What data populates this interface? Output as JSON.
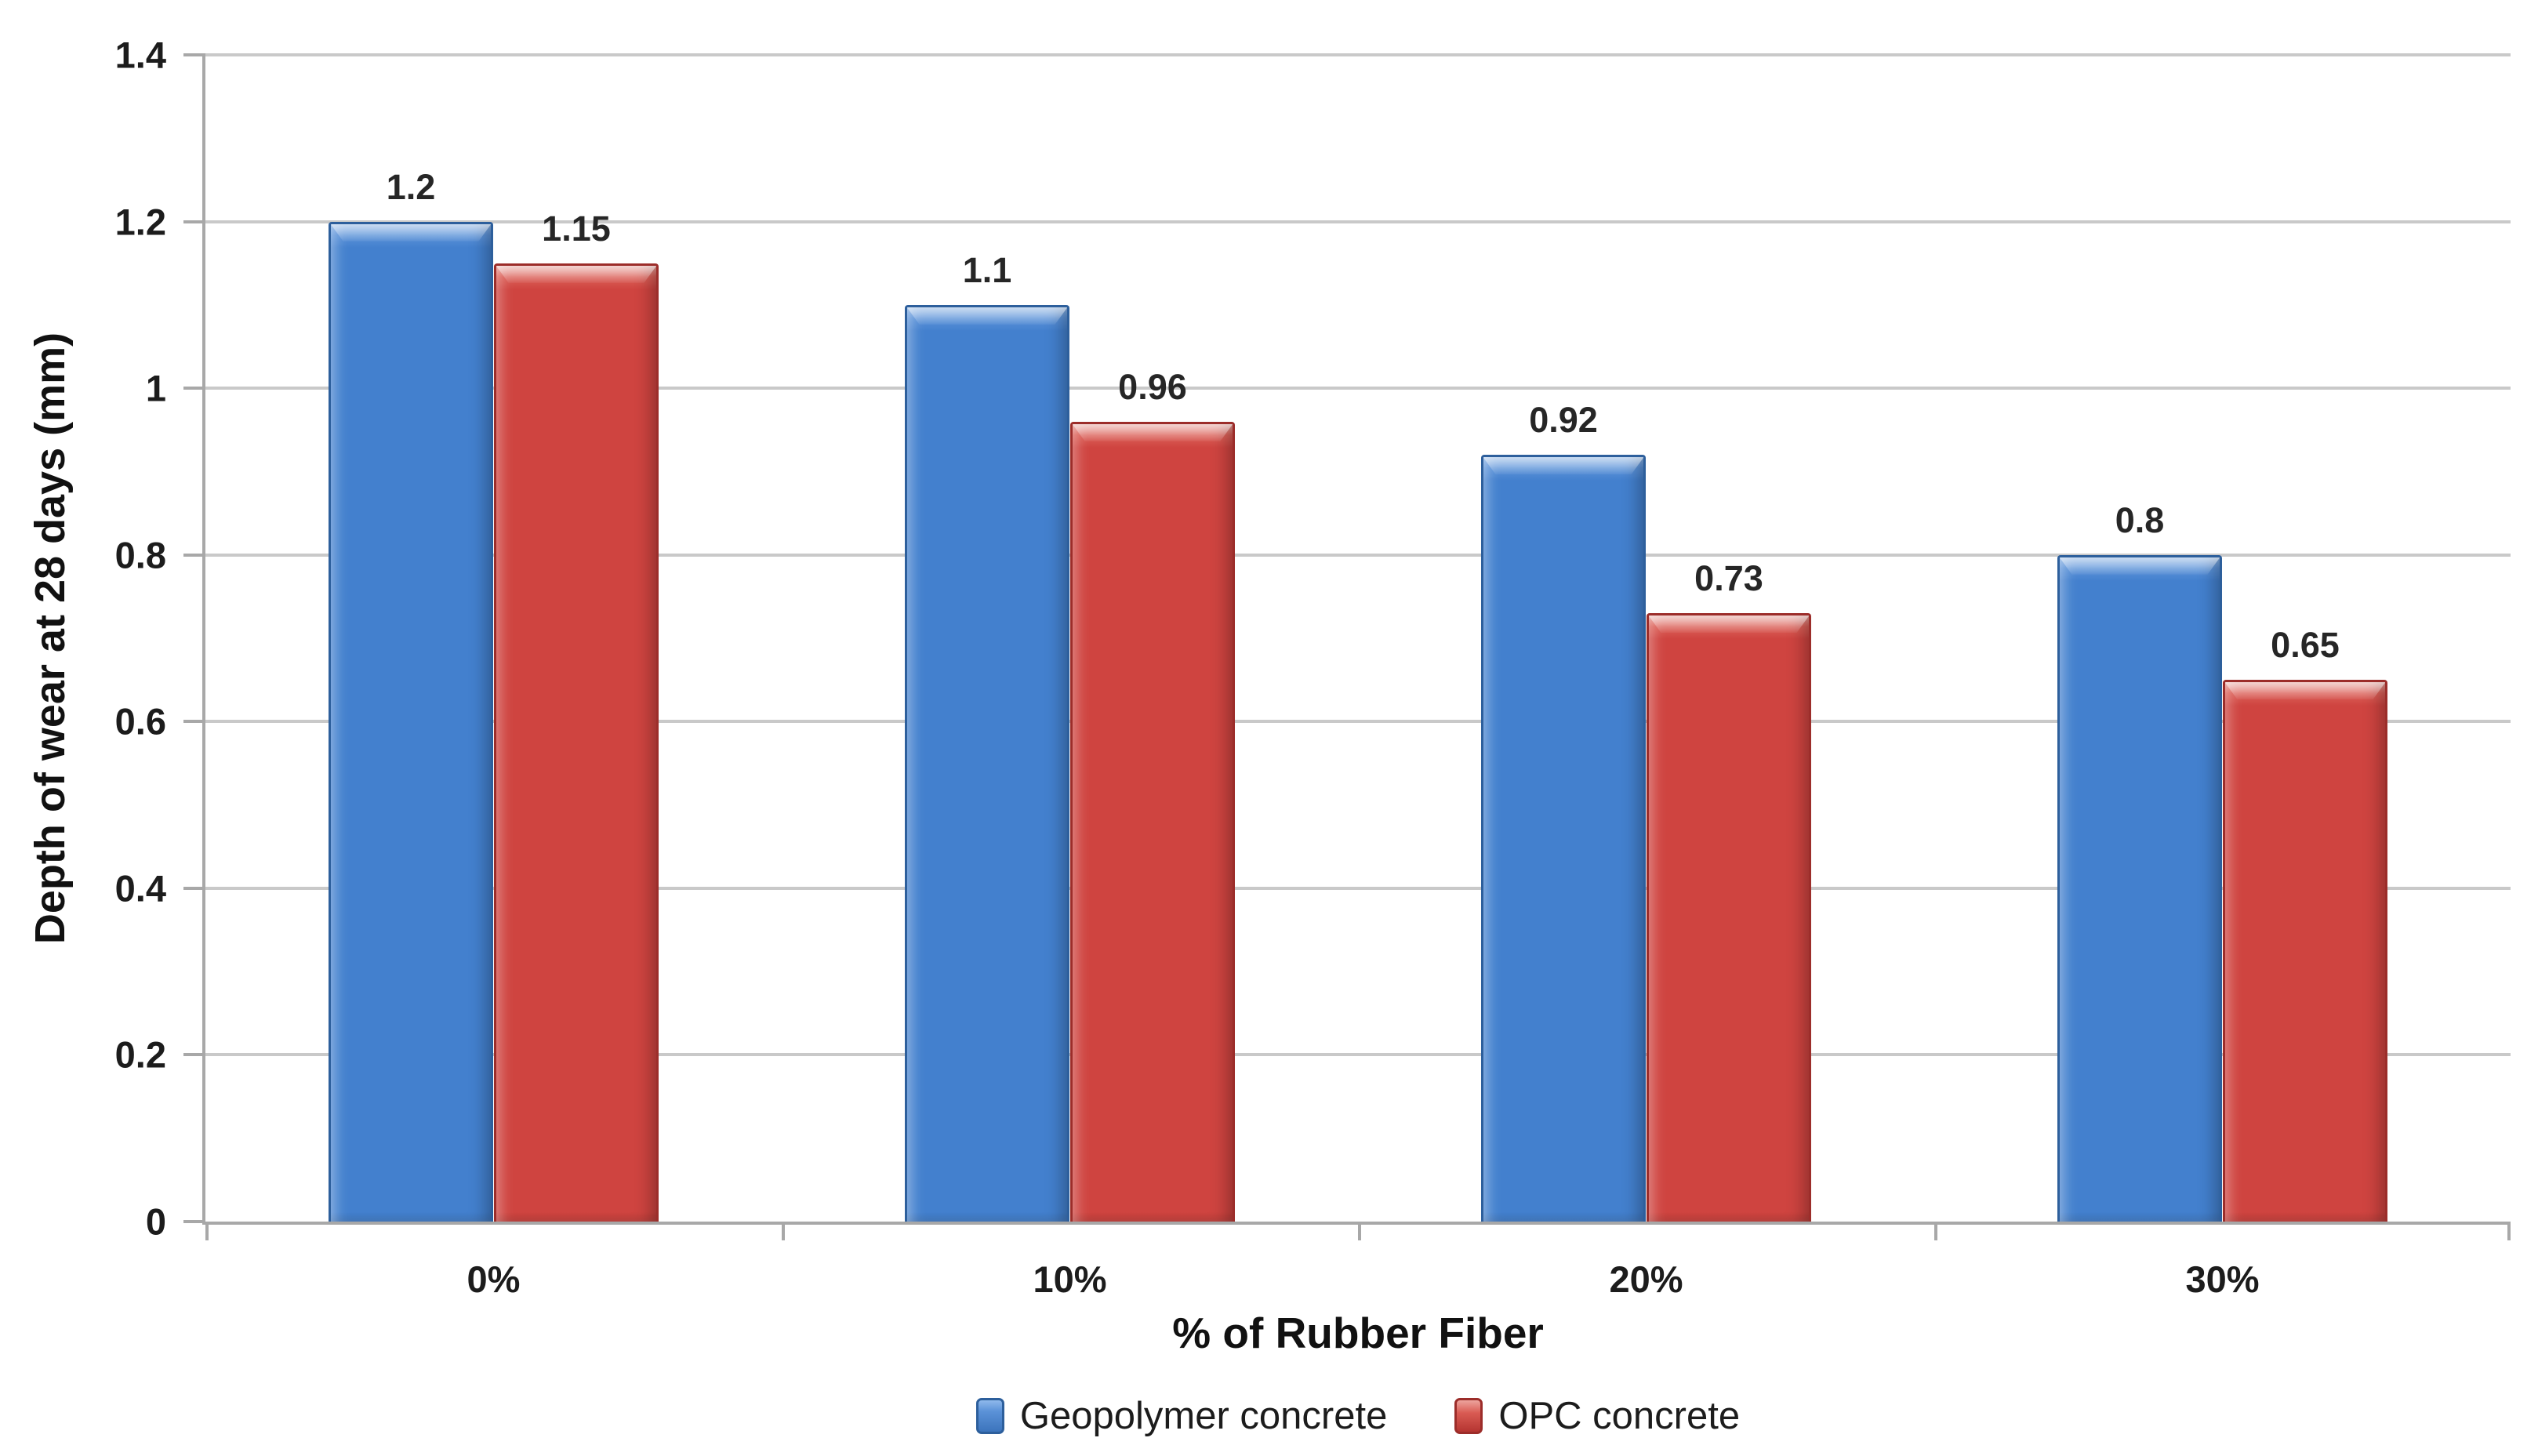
{
  "chart_data": {
    "type": "bar",
    "title": "",
    "categories": [
      "0%",
      "10%",
      "20%",
      "30%"
    ],
    "series": [
      {
        "name": "Geopolymer concrete",
        "color": "#4380CE",
        "values": [
          1.2,
          1.1,
          0.92,
          0.8
        ],
        "labels": [
          "1.2",
          "1.1",
          "0.92",
          "0.8"
        ]
      },
      {
        "name": "OPC concrete",
        "color": "#CF4440",
        "values": [
          1.15,
          0.96,
          0.73,
          0.65
        ],
        "labels": [
          "1.15",
          "0.96",
          "0.73",
          "0.65"
        ]
      }
    ],
    "xlabel": "% of Rubber Fiber",
    "ylabel": "Depth of wear at 28 days (mm)",
    "ylim": [
      0,
      1.4
    ],
    "ytick_step": 0.2,
    "yticks": [
      "0",
      "0.2",
      "0.4",
      "0.6",
      "0.8",
      "1",
      "1.2",
      "1.4"
    ],
    "grid": true,
    "legend_position": "bottom"
  },
  "colors": {
    "series_blue": "#4380CE",
    "series_red": "#CF4440",
    "gridline": "#C9C9C9",
    "axis_line": "#A8A8A8",
    "text": "#1C1C1C"
  }
}
